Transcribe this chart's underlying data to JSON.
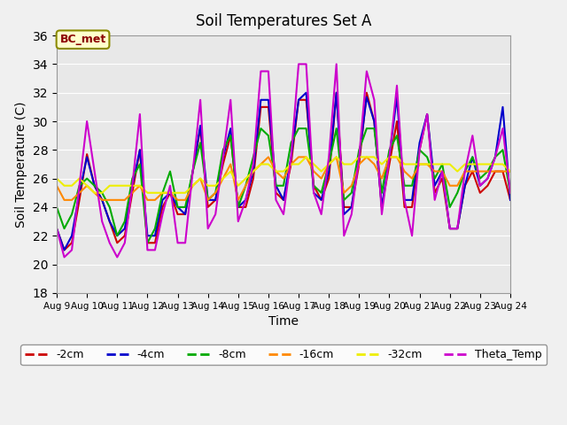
{
  "title": "Soil Temperatures Set A",
  "xlabel": "Time",
  "ylabel": "Soil Temperature (C)",
  "ylim": [
    18,
    36
  ],
  "yticks": [
    18,
    20,
    22,
    24,
    26,
    28,
    30,
    32,
    34,
    36
  ],
  "annotation": "BC_met",
  "background_color": "#e8e8e8",
  "axes_bg_color": "#e8e8e8",
  "series": {
    "-2cm": {
      "color": "#cc0000",
      "linewidth": 1.5,
      "x": [
        9,
        9.25,
        9.5,
        9.75,
        10,
        10.25,
        10.5,
        10.75,
        11,
        11.25,
        11.5,
        11.75,
        12,
        12.25,
        12.5,
        12.75,
        13,
        13.25,
        13.5,
        13.75,
        14,
        14.25,
        14.5,
        14.75,
        15,
        15.25,
        15.5,
        15.75,
        16,
        16.25,
        16.5,
        16.75,
        17,
        17.25,
        17.5,
        17.75,
        18,
        18.25,
        18.5,
        18.75,
        19,
        19.25,
        19.5,
        19.75,
        20,
        20.25,
        20.5,
        20.75,
        21,
        21.25,
        21.5,
        21.75,
        22,
        22.25,
        22.5,
        22.75,
        23,
        23.25,
        23.5,
        23.75,
        24
      ],
      "y": [
        22.5,
        21.0,
        21.5,
        24.5,
        27.7,
        25.5,
        24.5,
        23.0,
        21.5,
        22.0,
        25.0,
        28.0,
        21.5,
        21.5,
        24.0,
        25.0,
        23.5,
        23.5,
        26.5,
        29.5,
        24.0,
        24.5,
        27.0,
        29.0,
        24.0,
        24.0,
        26.0,
        31.0,
        31.0,
        25.0,
        24.5,
        27.0,
        31.5,
        31.5,
        25.5,
        24.5,
        26.0,
        32.0,
        24.0,
        24.0,
        27.0,
        32.0,
        30.0,
        24.0,
        27.0,
        30.0,
        24.0,
        24.0,
        28.0,
        30.5,
        25.0,
        26.0,
        22.5,
        22.5,
        25.5,
        26.5,
        25.0,
        25.5,
        26.5,
        26.5,
        24.5
      ]
    },
    "-4cm": {
      "color": "#0000cc",
      "linewidth": 1.5,
      "x": [
        9,
        9.25,
        9.5,
        9.75,
        10,
        10.25,
        10.5,
        10.75,
        11,
        11.25,
        11.5,
        11.75,
        12,
        12.25,
        12.5,
        12.75,
        13,
        13.25,
        13.5,
        13.75,
        14,
        14.25,
        14.5,
        14.75,
        15,
        15.25,
        15.5,
        15.75,
        16,
        16.25,
        16.5,
        16.75,
        17,
        17.25,
        17.5,
        17.75,
        18,
        18.25,
        18.5,
        18.75,
        19,
        19.25,
        19.5,
        19.75,
        20,
        20.25,
        20.5,
        20.75,
        21,
        21.25,
        21.5,
        21.75,
        22,
        22.25,
        22.5,
        22.75,
        23,
        23.25,
        23.5,
        23.75,
        24
      ],
      "y": [
        22.5,
        21.0,
        22.0,
        25.0,
        27.5,
        25.5,
        24.5,
        23.0,
        22.0,
        22.5,
        25.5,
        28.0,
        22.0,
        22.0,
        24.5,
        25.0,
        24.0,
        23.5,
        26.5,
        29.7,
        24.5,
        24.5,
        27.5,
        29.5,
        24.0,
        24.5,
        26.5,
        31.5,
        31.5,
        25.5,
        24.5,
        27.5,
        31.5,
        32.0,
        25.0,
        24.5,
        26.5,
        32.0,
        23.5,
        24.0,
        27.5,
        31.7,
        30.0,
        24.0,
        27.5,
        31.7,
        24.5,
        24.5,
        28.5,
        30.5,
        25.5,
        26.5,
        22.5,
        22.5,
        25.5,
        27.5,
        25.5,
        26.0,
        27.5,
        31.0,
        24.5
      ]
    },
    "-8cm": {
      "color": "#00aa00",
      "linewidth": 1.5,
      "x": [
        9,
        9.25,
        9.5,
        9.75,
        10,
        10.25,
        10.5,
        10.75,
        11,
        11.25,
        11.5,
        11.75,
        12,
        12.25,
        12.5,
        12.75,
        13,
        13.25,
        13.5,
        13.75,
        14,
        14.25,
        14.5,
        14.75,
        15,
        15.25,
        15.5,
        15.75,
        16,
        16.25,
        16.5,
        16.75,
        17,
        17.25,
        17.5,
        17.75,
        18,
        18.25,
        18.5,
        18.75,
        19,
        19.25,
        19.5,
        19.75,
        20,
        20.25,
        20.5,
        20.75,
        21,
        21.25,
        21.5,
        21.75,
        22,
        22.25,
        22.5,
        22.75,
        23,
        23.25,
        23.5,
        23.75,
        24
      ],
      "y": [
        24.0,
        22.5,
        23.5,
        25.5,
        26.0,
        25.5,
        25.0,
        24.0,
        22.0,
        23.0,
        26.0,
        27.0,
        21.5,
        22.5,
        25.0,
        26.5,
        24.0,
        24.0,
        26.5,
        28.5,
        24.5,
        25.0,
        28.0,
        29.0,
        24.0,
        25.5,
        27.5,
        29.5,
        29.0,
        25.5,
        25.5,
        28.5,
        29.5,
        29.5,
        25.5,
        25.0,
        27.0,
        29.5,
        24.5,
        25.0,
        28.0,
        29.5,
        29.5,
        25.0,
        28.0,
        29.0,
        25.5,
        25.5,
        28.0,
        27.5,
        26.0,
        27.0,
        24.0,
        25.0,
        26.5,
        27.5,
        26.0,
        26.5,
        27.5,
        28.0,
        25.0
      ]
    },
    "-16cm": {
      "color": "#ff8800",
      "linewidth": 1.5,
      "x": [
        9,
        9.25,
        9.5,
        9.75,
        10,
        10.25,
        10.5,
        10.75,
        11,
        11.25,
        11.5,
        11.75,
        12,
        12.25,
        12.5,
        12.75,
        13,
        13.25,
        13.5,
        13.75,
        14,
        14.25,
        14.5,
        14.75,
        15,
        15.25,
        15.5,
        15.75,
        16,
        16.25,
        16.5,
        16.75,
        17,
        17.25,
        17.5,
        17.75,
        18,
        18.25,
        18.5,
        18.75,
        19,
        19.25,
        19.5,
        19.75,
        20,
        20.25,
        20.5,
        20.75,
        21,
        21.25,
        21.5,
        21.75,
        22,
        22.25,
        22.5,
        22.75,
        23,
        23.25,
        23.5,
        23.75,
        24
      ],
      "y": [
        25.5,
        24.5,
        24.5,
        25.0,
        25.5,
        25.0,
        24.5,
        24.5,
        24.5,
        24.5,
        25.0,
        25.5,
        24.5,
        24.5,
        25.0,
        25.0,
        24.5,
        24.5,
        25.5,
        26.0,
        24.5,
        25.0,
        26.0,
        27.0,
        24.5,
        25.5,
        26.5,
        27.0,
        27.5,
        26.5,
        26.0,
        27.0,
        27.5,
        27.5,
        26.5,
        26.0,
        27.0,
        27.5,
        25.0,
        25.5,
        27.0,
        27.5,
        27.0,
        26.0,
        27.5,
        27.5,
        26.5,
        26.0,
        27.0,
        27.0,
        26.5,
        26.5,
        25.5,
        25.5,
        26.5,
        26.5,
        26.5,
        26.5,
        26.5,
        26.5,
        26.5
      ]
    },
    "-32cm": {
      "color": "#eeee00",
      "linewidth": 1.5,
      "x": [
        9,
        9.25,
        9.5,
        9.75,
        10,
        10.25,
        10.5,
        10.75,
        11,
        11.25,
        11.5,
        11.75,
        12,
        12.25,
        12.5,
        12.75,
        13,
        13.25,
        13.5,
        13.75,
        14,
        14.25,
        14.5,
        14.75,
        15,
        15.25,
        15.5,
        15.75,
        16,
        16.25,
        16.5,
        16.75,
        17,
        17.25,
        17.5,
        17.75,
        18,
        18.25,
        18.5,
        18.75,
        19,
        19.25,
        19.5,
        19.75,
        20,
        20.25,
        20.5,
        20.75,
        21,
        21.25,
        21.5,
        21.75,
        22,
        22.25,
        22.5,
        22.75,
        23,
        23.25,
        23.5,
        23.75,
        24
      ],
      "y": [
        26.0,
        25.5,
        25.5,
        26.0,
        25.5,
        25.0,
        25.0,
        25.5,
        25.5,
        25.5,
        25.5,
        25.5,
        25.0,
        25.0,
        25.0,
        25.0,
        25.0,
        25.0,
        25.5,
        26.0,
        25.5,
        25.5,
        26.0,
        26.5,
        25.5,
        26.0,
        26.5,
        27.0,
        27.0,
        26.5,
        26.5,
        27.0,
        27.0,
        27.5,
        27.0,
        26.5,
        27.0,
        27.5,
        27.0,
        27.0,
        27.5,
        27.5,
        27.5,
        27.0,
        27.5,
        27.5,
        27.0,
        27.0,
        27.0,
        27.0,
        27.0,
        27.0,
        27.0,
        26.5,
        27.0,
        27.0,
        27.0,
        27.0,
        27.0,
        27.0,
        26.5
      ]
    },
    "Theta_Temp": {
      "color": "#cc00cc",
      "linewidth": 1.5,
      "x": [
        9,
        9.25,
        9.5,
        9.75,
        10,
        10.25,
        10.5,
        10.75,
        11,
        11.25,
        11.5,
        11.75,
        12,
        12.25,
        12.5,
        12.75,
        13,
        13.25,
        13.5,
        13.75,
        14,
        14.25,
        14.5,
        14.75,
        15,
        15.25,
        15.5,
        15.75,
        16,
        16.25,
        16.5,
        16.75,
        17,
        17.25,
        17.5,
        17.75,
        18,
        18.25,
        18.5,
        18.75,
        19,
        19.25,
        19.5,
        19.75,
        20,
        20.25,
        20.5,
        20.75,
        21,
        21.25,
        21.5,
        21.75,
        22,
        22.25,
        22.5,
        22.75,
        23,
        23.25,
        23.5,
        23.75,
        24
      ],
      "y": [
        22.5,
        20.5,
        21.0,
        25.5,
        30.0,
        26.5,
        23.0,
        21.5,
        20.5,
        21.5,
        25.5,
        30.5,
        21.0,
        21.0,
        23.5,
        25.5,
        21.5,
        21.5,
        26.5,
        31.5,
        22.5,
        23.5,
        27.5,
        31.5,
        23.0,
        24.5,
        27.0,
        33.5,
        33.5,
        24.5,
        23.5,
        27.5,
        34.0,
        34.0,
        25.0,
        23.5,
        27.5,
        34.0,
        22.0,
        23.5,
        27.5,
        33.5,
        31.5,
        23.5,
        27.5,
        32.5,
        24.5,
        22.0,
        28.0,
        30.5,
        24.5,
        26.5,
        22.5,
        22.5,
        26.5,
        29.0,
        25.5,
        26.0,
        27.5,
        29.5,
        25.0
      ]
    }
  },
  "xtick_labels": [
    "Aug 9",
    "Aug 10",
    "Aug 11",
    "Aug 12",
    "Aug 13",
    "Aug 14",
    "Aug 15",
    "Aug 16",
    "Aug 17",
    "Aug 18",
    "Aug 19",
    "Aug 20",
    "Aug 21",
    "Aug 22",
    "Aug 23",
    "Aug 24"
  ],
  "xtick_positions": [
    9,
    10,
    11,
    12,
    13,
    14,
    15,
    16,
    17,
    18,
    19,
    20,
    21,
    22,
    23,
    24
  ],
  "xlim": [
    9,
    24
  ],
  "legend_colors": {
    "-2cm": "#cc0000",
    "-4cm": "#0000cc",
    "-8cm": "#00aa00",
    "-16cm": "#ff8800",
    "-32cm": "#eeee00",
    "Theta_Temp": "#cc00cc"
  }
}
